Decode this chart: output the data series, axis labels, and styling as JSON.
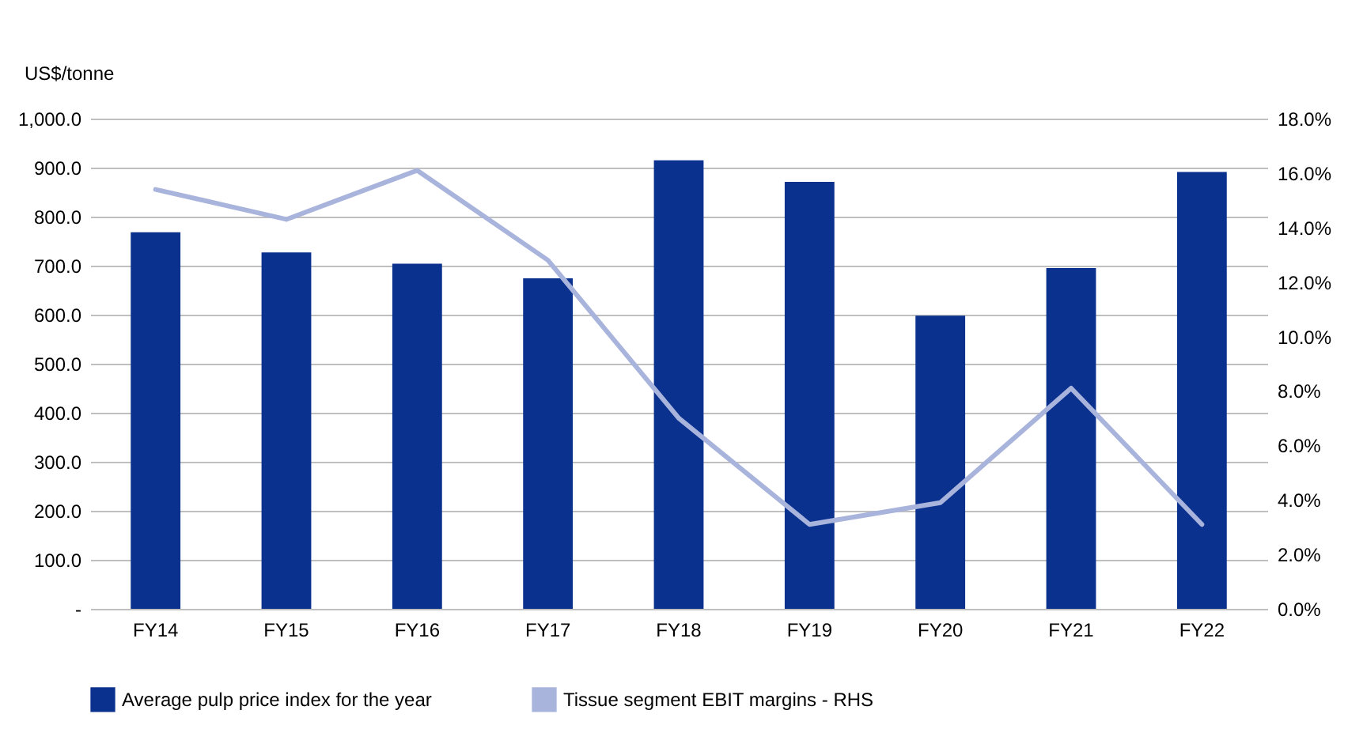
{
  "chart_data": {
    "type": "bar",
    "ylabel": "US$/tonne",
    "categories": [
      "FY14",
      "FY15",
      "FY16",
      "FY17",
      "FY18",
      "FY19",
      "FY20",
      "FY21",
      "FY22"
    ],
    "series": [
      {
        "name": "Average pulp price index for the year",
        "color": "#0b318f",
        "values": [
          768,
          727,
          704,
          674,
          915,
          871,
          598,
          695,
          891
        ]
      },
      {
        "name": "Tissue segment EBIT margins - RHS",
        "type": "line",
        "axis": "y2",
        "color": "#a9b4dc",
        "values": [
          15.4,
          14.3,
          16.1,
          12.8,
          7.0,
          3.1,
          3.9,
          8.1,
          3.1
        ]
      }
    ],
    "ylim": [
      0,
      1000
    ],
    "yticks": [
      {
        "value": 0,
        "label": "-"
      },
      {
        "value": 100,
        "label": "100.0"
      },
      {
        "value": 200,
        "label": "200.0"
      },
      {
        "value": 300,
        "label": "300.0"
      },
      {
        "value": 400,
        "label": "400.0"
      },
      {
        "value": 500,
        "label": "500.0"
      },
      {
        "value": 600,
        "label": "600.0"
      },
      {
        "value": 700,
        "label": "700.0"
      },
      {
        "value": 800,
        "label": "800.0"
      },
      {
        "value": 900,
        "label": "900.0"
      },
      {
        "value": 1000,
        "label": "1,000.0"
      }
    ],
    "y2lim": [
      0,
      18
    ],
    "y2ticks": [
      {
        "value": 0,
        "label": "0.0%"
      },
      {
        "value": 2,
        "label": "2.0%"
      },
      {
        "value": 4,
        "label": "4.0%"
      },
      {
        "value": 6,
        "label": "6.0%"
      },
      {
        "value": 8,
        "label": "8.0%"
      },
      {
        "value": 10,
        "label": "10.0%"
      },
      {
        "value": 12,
        "label": "12.0%"
      },
      {
        "value": 14,
        "label": "14.0%"
      },
      {
        "value": 16,
        "label": "16.0%"
      },
      {
        "value": 18,
        "label": "18.0%"
      }
    ],
    "grid": "y",
    "legend": "bottom",
    "line_style": "solid"
  }
}
